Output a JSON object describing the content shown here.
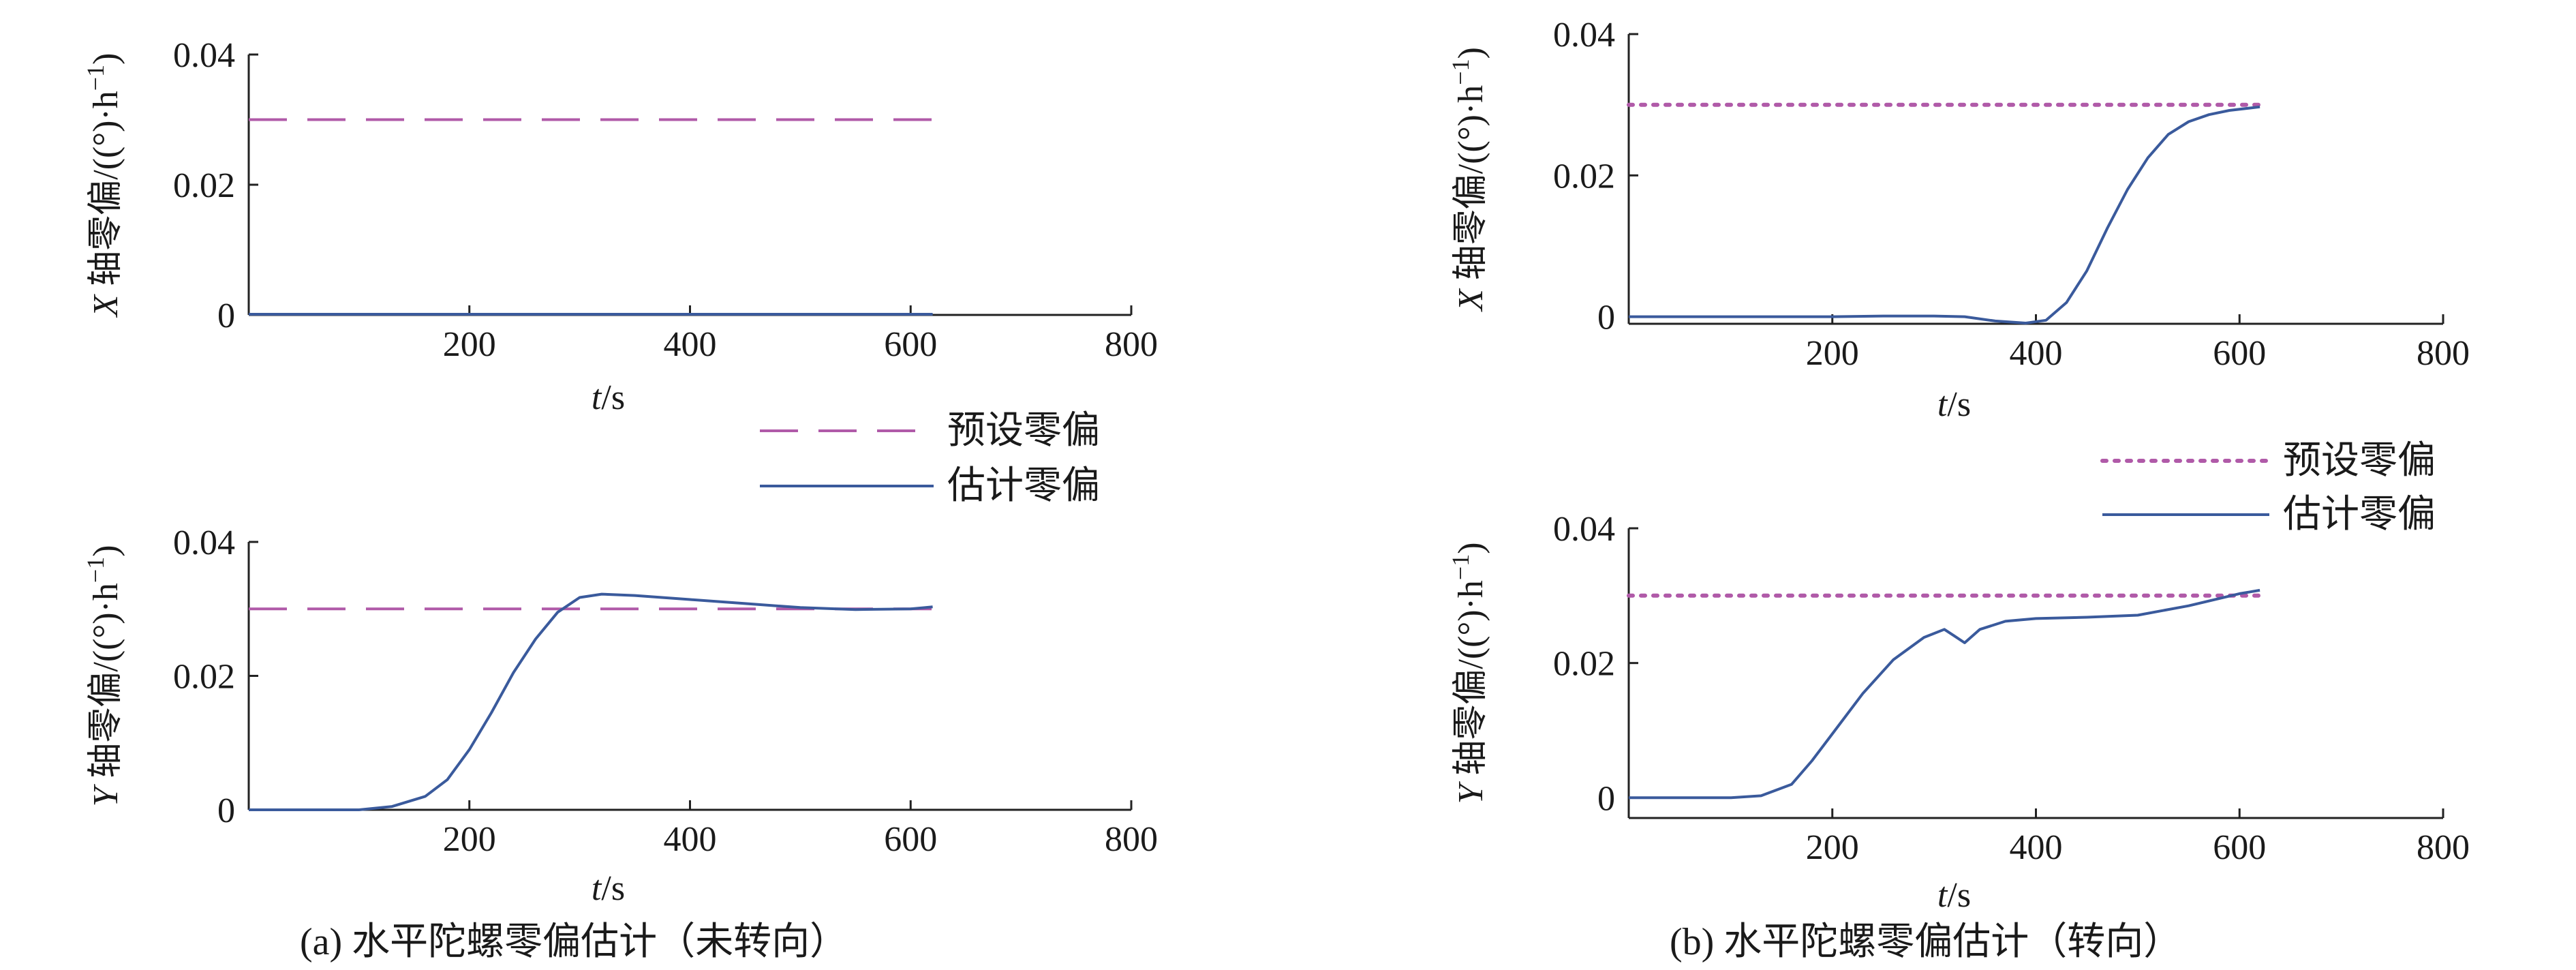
{
  "colors": {
    "preset": "#b05aa8",
    "estimate": "#3a5a9c",
    "axis": "#222222"
  },
  "legend_a": {
    "preset": "预设零偏",
    "estimate": "估计零偏"
  },
  "legend_b": {
    "preset": "预设零偏",
    "estimate": "估计零偏"
  },
  "captions": {
    "a": "(a) 水平陀螺零偏估计（未转向）",
    "b": "(b) 水平陀螺零偏估计（转向）"
  },
  "chart_data": [
    {
      "type": "line",
      "panel": "a-top",
      "xlabel_italic": "t",
      "xlabel_unit": "/s",
      "ylabel_axis": "X",
      "ylabel_rest": " 轴零偏/((°)·h",
      "ylabel_sup": "−1",
      "ylabel_end": ")",
      "xlim": [
        0,
        800
      ],
      "ylim": [
        0,
        0.04
      ],
      "xticks": [
        "200",
        "400",
        "600",
        "800"
      ],
      "yticks": [
        "0",
        "0.02",
        "0.04"
      ],
      "series": [
        {
          "name": "预设零偏",
          "style": "dashed",
          "x": [
            0,
            620
          ],
          "y": [
            0.03,
            0.03
          ]
        },
        {
          "name": "估计零偏",
          "style": "solid",
          "x": [
            0,
            100,
            200,
            300,
            400,
            500,
            620
          ],
          "y": [
            0.0001,
            0.0001,
            0.0001,
            0.0001,
            0.0001,
            0.0001,
            0.0001
          ]
        }
      ]
    },
    {
      "type": "line",
      "panel": "a-bottom",
      "xlabel_italic": "t",
      "xlabel_unit": "/s",
      "ylabel_axis": "Y",
      "ylabel_rest": " 轴零偏/((°)·h",
      "ylabel_sup": "−1",
      "ylabel_end": ")",
      "xlim": [
        0,
        800
      ],
      "ylim": [
        0,
        0.04
      ],
      "xticks": [
        "200",
        "400",
        "600",
        "800"
      ],
      "yticks": [
        "0",
        "0.02",
        "0.04"
      ],
      "series": [
        {
          "name": "预设零偏",
          "style": "dashed",
          "x": [
            0,
            620
          ],
          "y": [
            0.03,
            0.03
          ]
        },
        {
          "name": "估计零偏",
          "style": "solid",
          "x": [
            0,
            100,
            130,
            160,
            180,
            200,
            220,
            240,
            260,
            280,
            300,
            320,
            350,
            400,
            450,
            500,
            550,
            600,
            620
          ],
          "y": [
            0,
            0,
            0.0005,
            0.002,
            0.0045,
            0.009,
            0.0145,
            0.0205,
            0.0255,
            0.0295,
            0.0317,
            0.0322,
            0.032,
            0.0314,
            0.0308,
            0.0302,
            0.0299,
            0.03,
            0.0303
          ]
        }
      ]
    },
    {
      "type": "line",
      "panel": "b-top",
      "xlabel_italic": "t",
      "xlabel_unit": "/s",
      "ylabel_axis": "X",
      "ylabel_rest": " 轴零偏/((°)·h",
      "ylabel_sup": "−1",
      "ylabel_end": ")",
      "xlim": [
        0,
        800
      ],
      "ylim": [
        -0.001,
        0.04
      ],
      "xticks": [
        "200",
        "400",
        "600",
        "800"
      ],
      "yticks": [
        "0",
        "0.02",
        "0.04"
      ],
      "series": [
        {
          "name": "预设零偏",
          "style": "dotted",
          "x": [
            0,
            620
          ],
          "y": [
            0.03,
            0.03
          ]
        },
        {
          "name": "估计零偏",
          "style": "solid",
          "x": [
            0,
            100,
            200,
            250,
            300,
            330,
            360,
            390,
            410,
            430,
            450,
            470,
            490,
            510,
            530,
            550,
            570,
            590,
            620
          ],
          "y": [
            0,
            0,
            0,
            0.0001,
            0.0001,
            0,
            -0.0006,
            -0.0009,
            -0.0005,
            0.002,
            0.0065,
            0.0125,
            0.018,
            0.0225,
            0.0258,
            0.0276,
            0.0286,
            0.0292,
            0.0297
          ]
        }
      ]
    },
    {
      "type": "line",
      "panel": "b-bottom",
      "xlabel_italic": "t",
      "xlabel_unit": "/s",
      "ylabel_axis": "Y",
      "ylabel_rest": " 轴零偏/((°)·h",
      "ylabel_sup": "−1",
      "ylabel_end": ")",
      "xlim": [
        0,
        800
      ],
      "ylim": [
        -0.003,
        0.04
      ],
      "xticks": [
        "200",
        "400",
        "600",
        "800"
      ],
      "yticks": [
        "0",
        "0.02",
        "0.04"
      ],
      "series": [
        {
          "name": "预设零偏",
          "style": "dotted",
          "x": [
            0,
            620
          ],
          "y": [
            0.03,
            0.03
          ]
        },
        {
          "name": "估计零偏",
          "style": "solid",
          "x": [
            0,
            100,
            130,
            160,
            180,
            200,
            230,
            260,
            290,
            310,
            320,
            330,
            345,
            370,
            400,
            450,
            500,
            550,
            600,
            620
          ],
          "y": [
            0,
            0,
            0.0003,
            0.002,
            0.0055,
            0.0095,
            0.0155,
            0.0205,
            0.0238,
            0.025,
            0.024,
            0.023,
            0.025,
            0.0262,
            0.0266,
            0.0268,
            0.0271,
            0.0285,
            0.0303,
            0.0308
          ]
        }
      ]
    }
  ]
}
